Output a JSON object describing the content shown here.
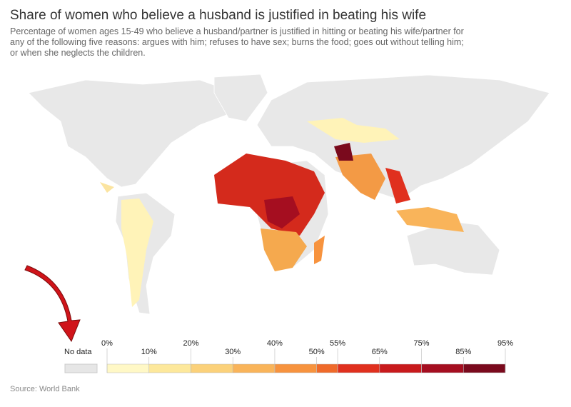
{
  "header": {
    "title": "Share of women who believe a husband is justified in beating his wife",
    "subtitle": [
      "Percentage of women ages 15-49 who believe a husband/partner is justified in hitting or beating his wife/partner for",
      "any of the following five reasons: argues with him; refuses to have sex; burns the food; goes out without telling him;",
      "or when she neglects the children."
    ]
  },
  "legend": {
    "no_data_label": "No data",
    "no_data_color": "#e6e6e6",
    "xlim": [
      0,
      95
    ],
    "ticks": [
      {
        "value": 0,
        "label": "0%"
      },
      {
        "value": 10,
        "label": "10%"
      },
      {
        "value": 20,
        "label": "20%"
      },
      {
        "value": 30,
        "label": "30%"
      },
      {
        "value": 40,
        "label": "40%"
      },
      {
        "value": 50,
        "label": "50%"
      },
      {
        "value": 55,
        "label": "55%"
      },
      {
        "value": 65,
        "label": "65%"
      },
      {
        "value": 75,
        "label": "75%"
      },
      {
        "value": 85,
        "label": "85%"
      },
      {
        "value": 95,
        "label": "95%"
      }
    ],
    "colors": [
      "#fff8c6",
      "#fde89b",
      "#fbd17a",
      "#f9b45a",
      "#f7933e",
      "#ef6a2a",
      "#e0301e",
      "#c81a1c",
      "#a50e20",
      "#7a0a1d"
    ]
  },
  "footer": {
    "source": "Source: World Bank"
  }
}
